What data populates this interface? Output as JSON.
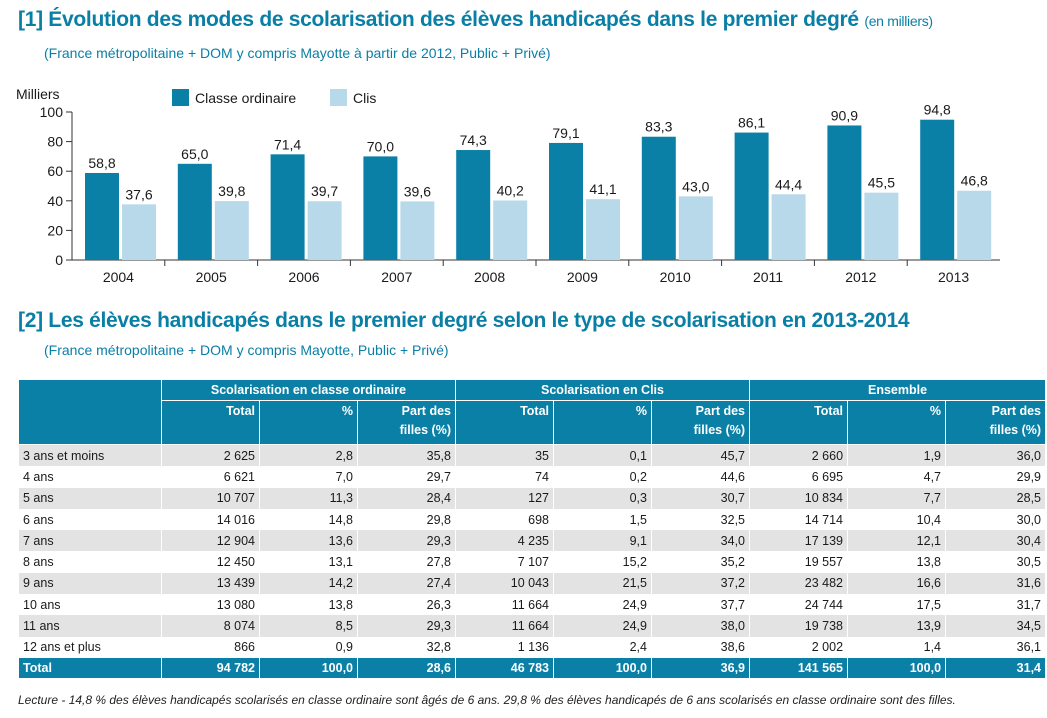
{
  "section1": {
    "title": "[1] Évolution des modes de scolarisation des élèves handicapés dans le premier degré",
    "title_unit": "(en milliers)",
    "subtitle": "(France métropolitaine + DOM y compris Mayotte à partir de 2012, Public + Privé)"
  },
  "chart_data": {
    "type": "bar",
    "ylabel": "Milliers",
    "ylim": [
      0,
      100
    ],
    "yticks": [
      0,
      20,
      40,
      60,
      80,
      100
    ],
    "categories": [
      "2004",
      "2005",
      "2006",
      "2007",
      "2008",
      "2009",
      "2010",
      "2011",
      "2012",
      "2013"
    ],
    "legend_position": "top",
    "grid": false,
    "series": [
      {
        "name": "Classe ordinaire",
        "color": "#0a80a6",
        "values": [
          58.8,
          65.0,
          71.4,
          70.0,
          74.3,
          79.1,
          83.3,
          86.1,
          90.9,
          94.8
        ],
        "labels": [
          "58,8",
          "65,0",
          "71,4",
          "70,0",
          "74,3",
          "79,1",
          "83,3",
          "86,1",
          "90,9",
          "94,8"
        ]
      },
      {
        "name": "Clis",
        "color": "#b8d9ea",
        "values": [
          37.6,
          39.8,
          39.7,
          39.6,
          40.2,
          41.1,
          43.0,
          44.4,
          45.5,
          46.8
        ],
        "labels": [
          "37,6",
          "39,8",
          "39,7",
          "39,6",
          "40,2",
          "41,1",
          "43,0",
          "44,4",
          "45,5",
          "46,8"
        ]
      }
    ]
  },
  "section2": {
    "title": "[2] Les élèves handicapés dans le premier degré selon le type de scolarisation en 2013-2014",
    "subtitle": "(France métropolitaine + DOM y compris Mayotte, Public + Privé)"
  },
  "table": {
    "groups": [
      "Scolarisation en classe ordinaire",
      "Scolarisation en Clis",
      "Ensemble"
    ],
    "col_total": "Total",
    "col_pct": "%",
    "col_part_l1": "Part des",
    "col_part_l2": "filles (%)",
    "rows": [
      [
        "3 ans et moins",
        "2 625",
        "2,8",
        "35,8",
        "35",
        "0,1",
        "45,7",
        "2 660",
        "1,9",
        "36,0"
      ],
      [
        "4 ans",
        "6 621",
        "7,0",
        "29,7",
        "74",
        "0,2",
        "44,6",
        "6 695",
        "4,7",
        "29,9"
      ],
      [
        "5 ans",
        "10 707",
        "11,3",
        "28,4",
        "127",
        "0,3",
        "30,7",
        "10 834",
        "7,7",
        "28,5"
      ],
      [
        "6 ans",
        "14 016",
        "14,8",
        "29,8",
        "698",
        "1,5",
        "32,5",
        "14 714",
        "10,4",
        "30,0"
      ],
      [
        "7 ans",
        "12 904",
        "13,6",
        "29,3",
        "4 235",
        "9,1",
        "34,0",
        "17 139",
        "12,1",
        "30,4"
      ],
      [
        "8 ans",
        "12 450",
        "13,1",
        "27,8",
        "7 107",
        "15,2",
        "35,2",
        "19 557",
        "13,8",
        "30,5"
      ],
      [
        "9 ans",
        "13 439",
        "14,2",
        "27,4",
        "10 043",
        "21,5",
        "37,2",
        "23 482",
        "16,6",
        "31,6"
      ],
      [
        "10 ans",
        "13 080",
        "13,8",
        "26,3",
        "11 664",
        "24,9",
        "37,7",
        "24 744",
        "17,5",
        "31,7"
      ],
      [
        "11 ans",
        "8 074",
        "8,5",
        "29,3",
        "11 664",
        "24,9",
        "38,0",
        "19 738",
        "13,9",
        "34,5"
      ],
      [
        "12 ans et plus",
        "866",
        "0,9",
        "32,8",
        "1 136",
        "2,4",
        "38,6",
        "2 002",
        "1,4",
        "36,1"
      ]
    ],
    "total": [
      "Total",
      "94 782",
      "100,0",
      "28,6",
      "46 783",
      "100,0",
      "36,9",
      "141 565",
      "100,0",
      "31,4"
    ]
  },
  "lecture": "Lecture - 14,8 % des élèves handicapés scolarisés en classe ordinaire sont âgés de 6 ans. 29,8 % des élèves handicapés de 6 ans scolarisés en classe ordinaire sont des filles."
}
